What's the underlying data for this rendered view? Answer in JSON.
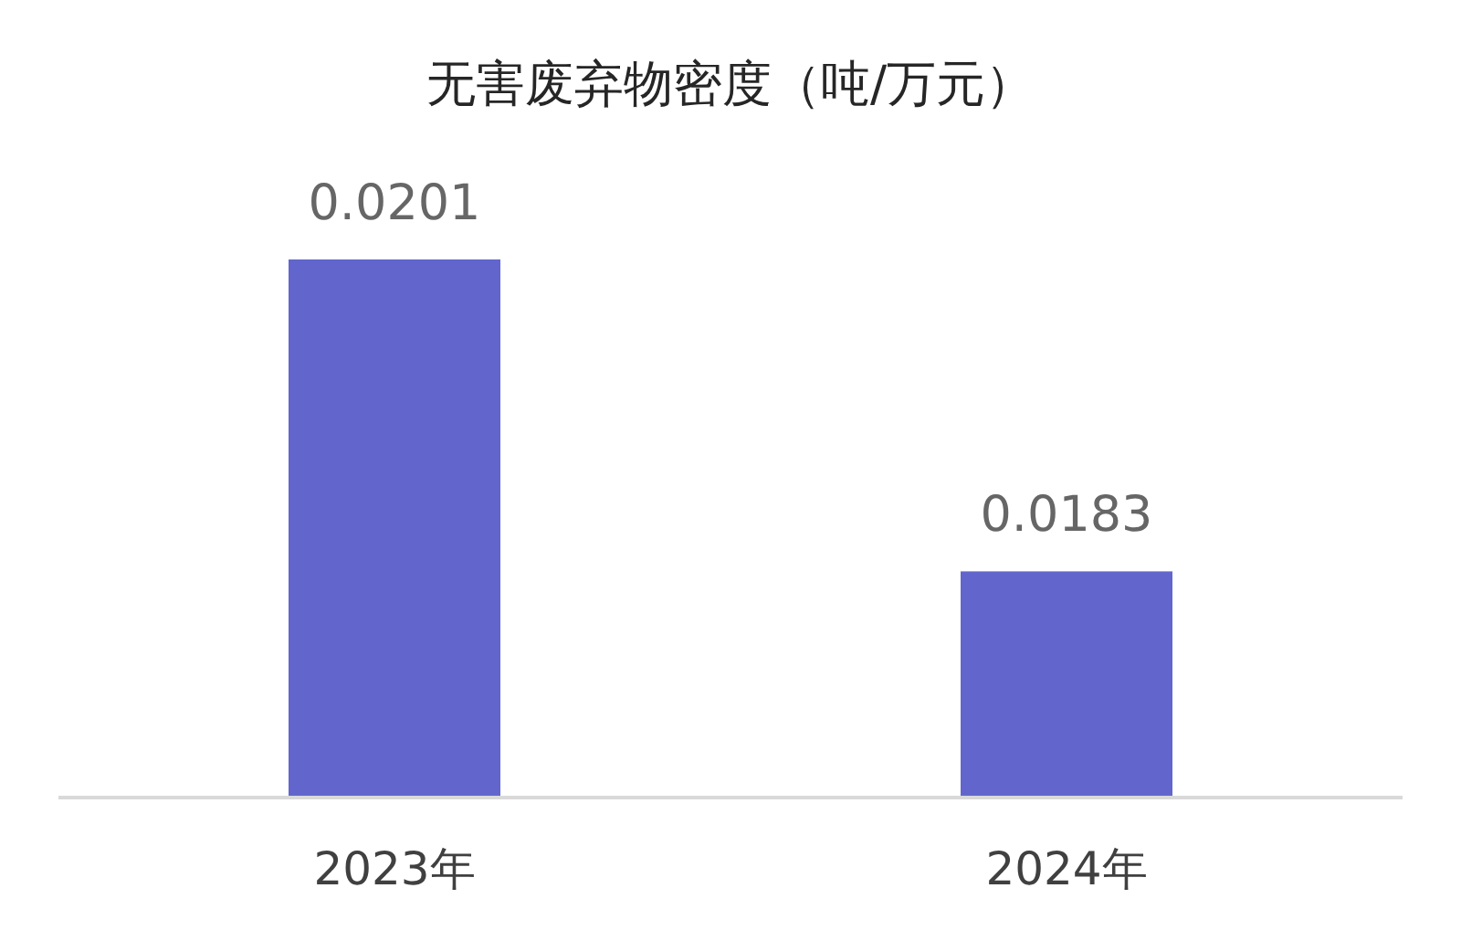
{
  "chart_data": {
    "type": "bar",
    "title": "无害废弃物密度（吨/万元）",
    "categories": [
      "2023年",
      "2024年"
    ],
    "values": [
      0.0201,
      0.0183
    ],
    "color": "#6266cc",
    "data_labels": true,
    "ylim": [
      0.017,
      0.0201
    ]
  }
}
